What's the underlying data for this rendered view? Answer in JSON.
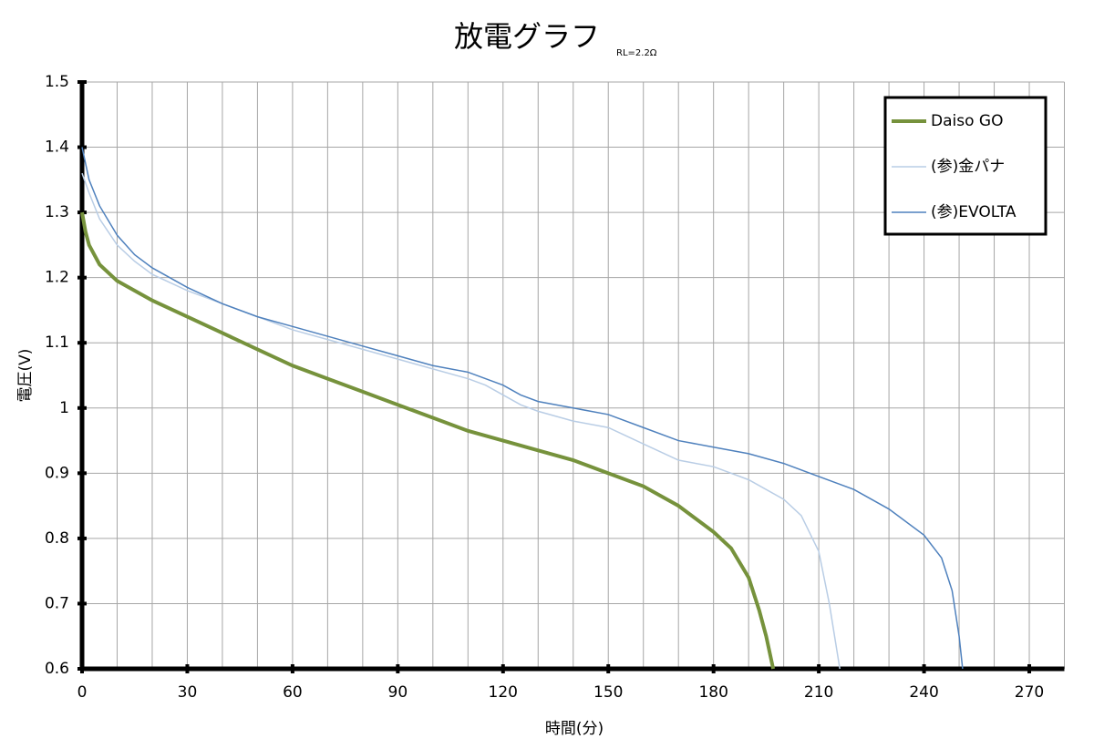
{
  "chart_data": {
    "type": "line",
    "title": "放電グラフ",
    "subtitle": "RL=2.2Ω",
    "x_label": "時間(分)",
    "y_label": "電圧(V)",
    "xlim": [
      0,
      280
    ],
    "xticks": [
      0,
      30,
      60,
      90,
      120,
      150,
      180,
      210,
      240,
      270
    ],
    "x_minor_ticks": [
      10,
      20,
      40,
      50,
      70,
      80,
      100,
      110,
      130,
      140,
      160,
      170,
      190,
      200,
      220,
      230,
      250,
      260,
      280
    ],
    "ylim": [
      0.6,
      1.5
    ],
    "yticks": [
      0.6,
      0.7,
      0.8,
      0.9,
      1.0,
      1.1,
      1.2,
      1.3,
      1.4,
      1.5
    ],
    "grid": true,
    "legend": "top-right",
    "series": [
      {
        "name": "Daiso GO",
        "color": "#76923c",
        "width": 4,
        "x": [
          0,
          1,
          2,
          5,
          10,
          15,
          20,
          30,
          40,
          50,
          60,
          70,
          80,
          90,
          100,
          110,
          120,
          130,
          140,
          150,
          160,
          170,
          180,
          185,
          190,
          193,
          195,
          197
        ],
        "values": [
          1.3,
          1.27,
          1.25,
          1.22,
          1.195,
          1.18,
          1.165,
          1.14,
          1.115,
          1.09,
          1.065,
          1.045,
          1.025,
          1.005,
          0.985,
          0.965,
          0.95,
          0.935,
          0.92,
          0.9,
          0.88,
          0.85,
          0.81,
          0.785,
          0.74,
          0.69,
          0.65,
          0.6
        ]
      },
      {
        "name": "(参)金パナ",
        "color": "#b9cde5",
        "width": 1.5,
        "x": [
          0,
          2,
          5,
          10,
          15,
          20,
          30,
          40,
          50,
          60,
          70,
          80,
          90,
          100,
          110,
          115,
          120,
          125,
          130,
          140,
          150,
          160,
          170,
          180,
          190,
          200,
          205,
          210,
          213,
          216
        ],
        "values": [
          1.36,
          1.33,
          1.29,
          1.25,
          1.225,
          1.205,
          1.18,
          1.16,
          1.14,
          1.12,
          1.105,
          1.09,
          1.075,
          1.06,
          1.045,
          1.035,
          1.02,
          1.005,
          0.995,
          0.98,
          0.97,
          0.945,
          0.92,
          0.91,
          0.89,
          0.86,
          0.835,
          0.78,
          0.7,
          0.6
        ]
      },
      {
        "name": "(参)EVOLTA",
        "color": "#4f81bd",
        "width": 1.5,
        "x": [
          0,
          2,
          5,
          10,
          15,
          20,
          30,
          40,
          50,
          60,
          70,
          80,
          90,
          100,
          110,
          115,
          120,
          125,
          130,
          140,
          150,
          160,
          170,
          180,
          190,
          200,
          210,
          220,
          230,
          240,
          245,
          248,
          250,
          251
        ],
        "values": [
          1.4,
          1.35,
          1.31,
          1.265,
          1.235,
          1.215,
          1.185,
          1.16,
          1.14,
          1.125,
          1.11,
          1.095,
          1.08,
          1.065,
          1.055,
          1.045,
          1.035,
          1.02,
          1.01,
          1.0,
          0.99,
          0.97,
          0.95,
          0.94,
          0.93,
          0.915,
          0.895,
          0.875,
          0.845,
          0.805,
          0.77,
          0.72,
          0.65,
          0.6
        ]
      }
    ]
  }
}
